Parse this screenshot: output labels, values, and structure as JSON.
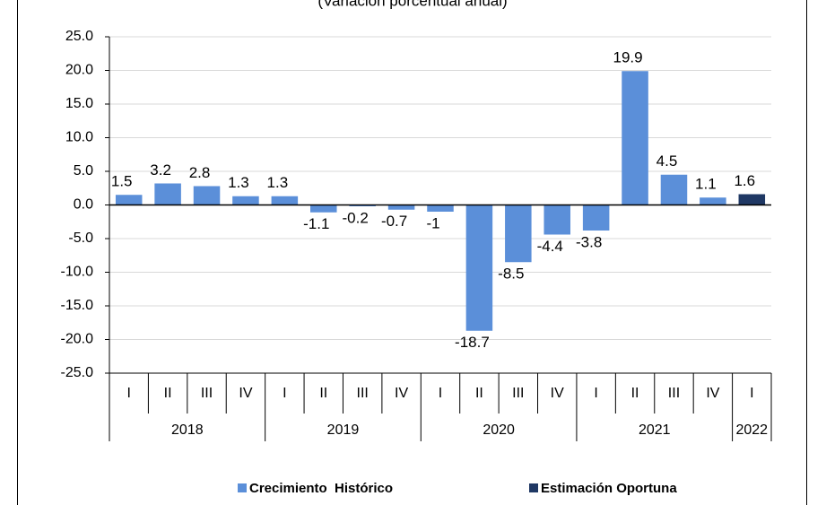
{
  "chart_data": {
    "type": "bar",
    "subtitle": "(Variación porcentual anual)",
    "categories": [
      "I",
      "II",
      "III",
      "IV",
      "I",
      "II",
      "III",
      "IV",
      "I",
      "II",
      "III",
      "IV",
      "I",
      "II",
      "III",
      "IV",
      "I"
    ],
    "groups": [
      {
        "name": "2018",
        "count": 4
      },
      {
        "name": "2019",
        "count": 4
      },
      {
        "name": "2020",
        "count": 4
      },
      {
        "name": "2021",
        "count": 4
      },
      {
        "name": "2022",
        "count": 1
      }
    ],
    "series": [
      {
        "name": "Crecimiento  Histórico",
        "color": "#5b8fd9",
        "values": [
          1.5,
          3.2,
          2.8,
          1.3,
          1.3,
          -1.1,
          -0.2,
          -0.7,
          -1.0,
          -18.7,
          -8.5,
          -4.4,
          -3.8,
          19.9,
          4.5,
          1.1,
          null
        ]
      },
      {
        "name": "Estimación Oportuna",
        "color": "#1f3864",
        "values": [
          null,
          null,
          null,
          null,
          null,
          null,
          null,
          null,
          null,
          null,
          null,
          null,
          null,
          null,
          null,
          null,
          1.6
        ]
      }
    ],
    "ylim": [
      -25,
      25
    ],
    "yticks": [
      {
        "value": 25,
        "label": "25.0"
      },
      {
        "value": 20,
        "label": "20.0"
      },
      {
        "value": 15,
        "label": "15.0"
      },
      {
        "value": 10,
        "label": "10.0"
      },
      {
        "value": 5,
        "label": "5.0"
      },
      {
        "value": 0,
        "label": "0.0"
      },
      {
        "value": -5,
        "label": "-5.0"
      },
      {
        "value": -10,
        "label": "-10.0"
      },
      {
        "value": -15,
        "label": "-15.0"
      },
      {
        "value": -20,
        "label": "-20.0"
      },
      {
        "value": -25,
        "label": "-25.0"
      }
    ],
    "grid": true
  }
}
